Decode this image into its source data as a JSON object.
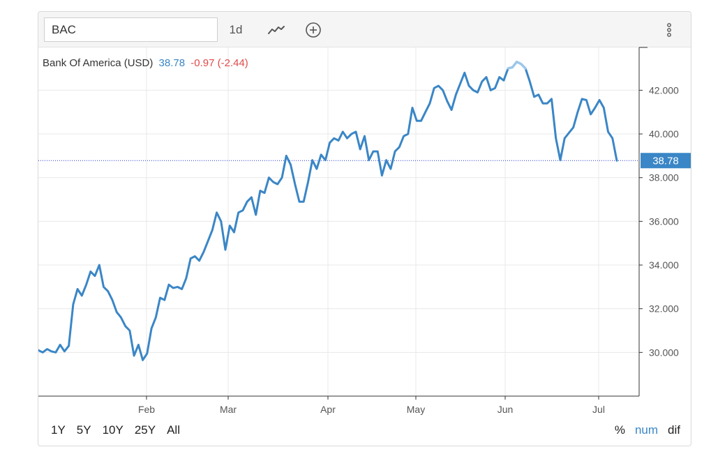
{
  "toolbar": {
    "symbol": "BAC",
    "interval": "1d",
    "chart_type_icon": "line-chart-icon",
    "compare_icon": "add-circle-icon",
    "menu_icon": "vertical-dots-icon"
  },
  "legend": {
    "name": "Bank Of America (USD)",
    "last": "38.78",
    "change": "-0.97 (-2.44)"
  },
  "range_buttons": [
    "1Y",
    "5Y",
    "10Y",
    "25Y",
    "All"
  ],
  "scale_buttons": [
    "%",
    "num",
    "dif"
  ],
  "colors": {
    "line": "#3a86c6",
    "line_highlight": "#9cc7ea",
    "change_negative": "#e04b4b",
    "last_price_marker": "#3a86c6",
    "last_price_guide": "#2233cc",
    "grid": "#e8e8e8"
  },
  "chart_data": {
    "type": "line",
    "y_axis_ticks": [
      "30.000",
      "32.000",
      "34.000",
      "36.000",
      "38.000",
      "40.000",
      "42.000"
    ],
    "x_axis_ticks": [
      "Feb",
      "Mar",
      "Apr",
      "May",
      "Jun",
      "Jul"
    ],
    "ylim": [
      28.0,
      43.96
    ],
    "last_price_label": "38.78",
    "last_price": 38.78,
    "grid": true,
    "series": [
      {
        "values": [
          30.1,
          30.0,
          30.15,
          30.05,
          30.0,
          30.35,
          30.05,
          30.3,
          32.2,
          32.9,
          32.6,
          33.1,
          33.7,
          33.5,
          34.0,
          33.0,
          32.8,
          32.4,
          31.85,
          31.6,
          31.2,
          31.0,
          29.85,
          30.35,
          29.65,
          29.95,
          31.1,
          31.6,
          32.5,
          32.4,
          33.1,
          32.95,
          33.0,
          32.9,
          33.4,
          34.3,
          34.4,
          34.2,
          34.6,
          35.1,
          35.6,
          36.4,
          36.0,
          34.7,
          35.8,
          35.5,
          36.4,
          36.5,
          36.9,
          37.1,
          36.3,
          37.4,
          37.3,
          38.0,
          37.8,
          37.7,
          38.0,
          39.0,
          38.6,
          37.7,
          36.9,
          36.9,
          37.8,
          38.8,
          38.4,
          39.05,
          38.8,
          39.6,
          39.8,
          39.7,
          40.1,
          39.8,
          40.0,
          40.1,
          39.3,
          39.9,
          38.8,
          39.2,
          39.2,
          38.1,
          38.8,
          38.4,
          39.2,
          39.4,
          39.9,
          40.0,
          41.2,
          40.6,
          40.6,
          41.0,
          41.4,
          42.1,
          42.2,
          42.0,
          41.5,
          41.1,
          41.8,
          42.3,
          42.8,
          42.2,
          42.0,
          41.9,
          42.4,
          42.6,
          42.0,
          42.1,
          42.6,
          42.45,
          43.0,
          43.05,
          43.3,
          43.2,
          43.0,
          42.4,
          41.7,
          41.8,
          41.4,
          41.4,
          41.6,
          39.8,
          38.8,
          39.8,
          40.05,
          40.3,
          41.0,
          41.6,
          41.55,
          40.9,
          41.2,
          41.55,
          41.2,
          40.1,
          39.8,
          38.78
        ]
      }
    ]
  }
}
